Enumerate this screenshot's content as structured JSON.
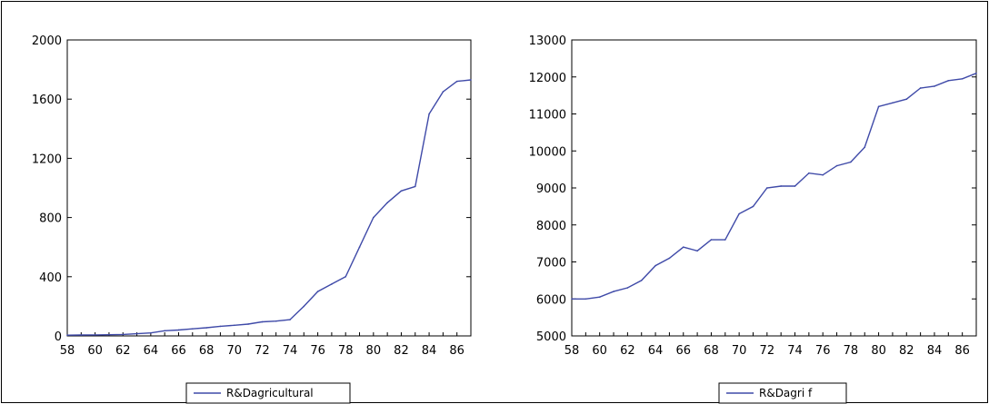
{
  "chart_data": [
    {
      "type": "line",
      "title": "",
      "xlabel": "",
      "ylabel": "",
      "x_ticks": [
        "58",
        "60",
        "62",
        "64",
        "66",
        "68",
        "70",
        "72",
        "74",
        "76",
        "78",
        "80",
        "82",
        "84",
        "86"
      ],
      "y_ticks": [
        "0",
        "400",
        "800",
        "1200",
        "1600",
        "2000"
      ],
      "xlim": [
        1958,
        1987
      ],
      "ylim": [
        0,
        2000
      ],
      "grid": false,
      "legend_position": "bottom",
      "series": [
        {
          "name": "R&Dagricultural",
          "color": "#3f4aa8",
          "x": [
            1958,
            1959,
            1960,
            1961,
            1962,
            1963,
            1964,
            1965,
            1966,
            1967,
            1968,
            1969,
            1970,
            1971,
            1972,
            1973,
            1974,
            1975,
            1976,
            1977,
            1978,
            1979,
            1980,
            1981,
            1982,
            1983,
            1984,
            1985,
            1986,
            1987
          ],
          "values": [
            5,
            6,
            7,
            8,
            10,
            15,
            20,
            35,
            40,
            48,
            55,
            65,
            72,
            80,
            95,
            100,
            110,
            200,
            300,
            350,
            400,
            600,
            800,
            900,
            980,
            1010,
            1500,
            1650,
            1720,
            1730
          ]
        }
      ]
    },
    {
      "type": "line",
      "title": "",
      "xlabel": "",
      "ylabel": "",
      "x_ticks": [
        "58",
        "60",
        "62",
        "64",
        "66",
        "68",
        "70",
        "72",
        "74",
        "76",
        "78",
        "80",
        "82",
        "84",
        "86"
      ],
      "y_ticks": [
        "5000",
        "6000",
        "7000",
        "8000",
        "9000",
        "10000",
        "11000",
        "12000",
        "13000"
      ],
      "xlim": [
        1958,
        1987
      ],
      "ylim": [
        5000,
        13000
      ],
      "grid": false,
      "legend_position": "bottom",
      "series": [
        {
          "name": "R&Dagri f",
          "color": "#3f4aa8",
          "x": [
            1958,
            1959,
            1960,
            1961,
            1962,
            1963,
            1964,
            1965,
            1966,
            1967,
            1968,
            1969,
            1970,
            1971,
            1972,
            1973,
            1974,
            1975,
            1976,
            1977,
            1978,
            1979,
            1980,
            1981,
            1982,
            1983,
            1984,
            1985,
            1986,
            1987
          ],
          "values": [
            6000,
            6000,
            6050,
            6200,
            6300,
            6500,
            6900,
            7100,
            7400,
            7300,
            7600,
            7600,
            8300,
            8500,
            9000,
            9050,
            9050,
            9400,
            9350,
            9600,
            9700,
            10100,
            11200,
            11300,
            11400,
            11700,
            11750,
            11900,
            11950,
            12100
          ]
        }
      ]
    }
  ]
}
